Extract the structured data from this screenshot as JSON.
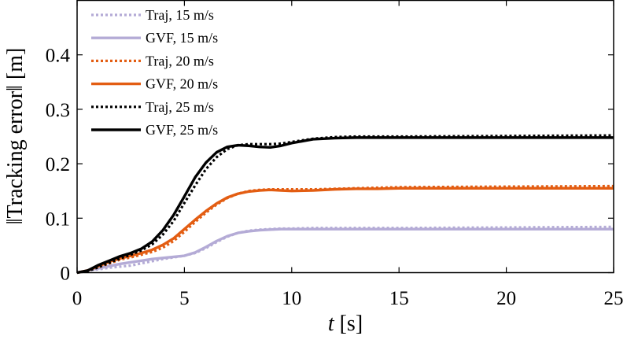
{
  "chart_data": {
    "type": "line",
    "title": "",
    "xlabel": {
      "italic": "t",
      "rest": " [s]"
    },
    "ylabel": "‖Tracking error‖ [m]",
    "xlim": [
      0,
      25
    ],
    "ylim": [
      0,
      0.5
    ],
    "xticks": [
      0,
      5,
      10,
      15,
      20,
      25
    ],
    "yticks": [
      0,
      0.1,
      0.2,
      0.3,
      0.4
    ],
    "ytick_labels": [
      "0",
      "0.1",
      "0.2",
      "0.3",
      "0.4"
    ],
    "grid": false,
    "legend_position": "top-left",
    "series": [
      {
        "name": "Traj,  15 m/s",
        "color": "#b4abd6",
        "style": "dotted",
        "x": [
          0,
          0.5,
          1,
          1.5,
          2,
          2.5,
          3,
          3.5,
          4,
          4.5,
          5,
          5.5,
          6,
          6.5,
          7,
          7.5,
          8,
          8.5,
          9,
          9.5,
          10,
          11,
          12,
          13,
          14,
          15,
          20,
          25
        ],
        "y": [
          0,
          0.004,
          0.006,
          0.009,
          0.011,
          0.013,
          0.017,
          0.021,
          0.025,
          0.028,
          0.031,
          0.036,
          0.045,
          0.056,
          0.066,
          0.073,
          0.077,
          0.079,
          0.08,
          0.081,
          0.081,
          0.082,
          0.082,
          0.082,
          0.082,
          0.082,
          0.083,
          0.084
        ]
      },
      {
        "name": "GVF, 15 m/s",
        "color": "#b4abd6",
        "style": "solid",
        "x": [
          0,
          0.5,
          1,
          1.5,
          2,
          2.5,
          3,
          3.5,
          4,
          4.5,
          5,
          5.5,
          6,
          6.5,
          7,
          7.5,
          8,
          8.5,
          9,
          9.5,
          10,
          11,
          12,
          13,
          14,
          15,
          20,
          25
        ],
        "y": [
          0,
          0.004,
          0.008,
          0.012,
          0.016,
          0.019,
          0.022,
          0.025,
          0.027,
          0.029,
          0.031,
          0.037,
          0.047,
          0.058,
          0.067,
          0.073,
          0.076,
          0.078,
          0.079,
          0.08,
          0.08,
          0.08,
          0.08,
          0.08,
          0.08,
          0.08,
          0.08,
          0.08
        ]
      },
      {
        "name": "Traj,  20 m/s",
        "color": "#e35d12",
        "style": "dotted",
        "x": [
          0,
          0.5,
          1,
          1.5,
          2,
          2.5,
          3,
          3.5,
          4,
          4.5,
          5,
          5.5,
          6,
          6.5,
          7,
          7.5,
          8,
          8.5,
          9,
          9.5,
          10,
          11,
          12,
          13,
          14,
          15,
          20,
          25
        ],
        "y": [
          0,
          0.004,
          0.01,
          0.017,
          0.024,
          0.028,
          0.033,
          0.038,
          0.046,
          0.058,
          0.075,
          0.093,
          0.11,
          0.125,
          0.137,
          0.145,
          0.15,
          0.152,
          0.153,
          0.153,
          0.153,
          0.153,
          0.154,
          0.155,
          0.156,
          0.157,
          0.158,
          0.159
        ]
      },
      {
        "name": "GVF, 20 m/s",
        "color": "#e35d12",
        "style": "solid",
        "x": [
          0,
          0.5,
          1,
          1.5,
          2,
          2.5,
          3,
          3.5,
          4,
          4.5,
          5,
          5.5,
          6,
          6.5,
          7,
          7.5,
          8,
          8.5,
          9,
          9.5,
          10,
          11,
          12,
          13,
          14,
          15,
          20,
          25
        ],
        "y": [
          0,
          0.004,
          0.012,
          0.02,
          0.026,
          0.031,
          0.036,
          0.042,
          0.051,
          0.063,
          0.08,
          0.097,
          0.113,
          0.127,
          0.138,
          0.145,
          0.149,
          0.151,
          0.152,
          0.151,
          0.15,
          0.151,
          0.153,
          0.154,
          0.154,
          0.155,
          0.155,
          0.155
        ]
      },
      {
        "name": "Traj,  25 m/s",
        "color": "#000000",
        "style": "dotted",
        "x": [
          0,
          0.5,
          1,
          1.5,
          2,
          2.5,
          3,
          3.5,
          4,
          4.5,
          5,
          5.5,
          6,
          6.5,
          7,
          7.5,
          8,
          8.5,
          9,
          9.5,
          10,
          11,
          12,
          13,
          14,
          15,
          20,
          25
        ],
        "y": [
          0,
          0.003,
          0.01,
          0.018,
          0.026,
          0.033,
          0.041,
          0.052,
          0.07,
          0.095,
          0.128,
          0.16,
          0.19,
          0.212,
          0.227,
          0.234,
          0.236,
          0.236,
          0.236,
          0.237,
          0.24,
          0.246,
          0.249,
          0.25,
          0.25,
          0.25,
          0.251,
          0.252
        ]
      },
      {
        "name": "GVF, 25 m/s",
        "color": "#000000",
        "style": "solid",
        "x": [
          0,
          0.5,
          1,
          1.5,
          2,
          2.5,
          3,
          3.5,
          4,
          4.5,
          5,
          5.5,
          6,
          6.5,
          7,
          7.5,
          8,
          8.5,
          9,
          9.5,
          10,
          11,
          12,
          13,
          14,
          15,
          20,
          25
        ],
        "y": [
          0,
          0.004,
          0.014,
          0.022,
          0.03,
          0.036,
          0.044,
          0.057,
          0.078,
          0.106,
          0.14,
          0.175,
          0.202,
          0.221,
          0.231,
          0.234,
          0.233,
          0.231,
          0.23,
          0.233,
          0.238,
          0.245,
          0.247,
          0.248,
          0.248,
          0.248,
          0.248,
          0.248
        ]
      }
    ]
  }
}
